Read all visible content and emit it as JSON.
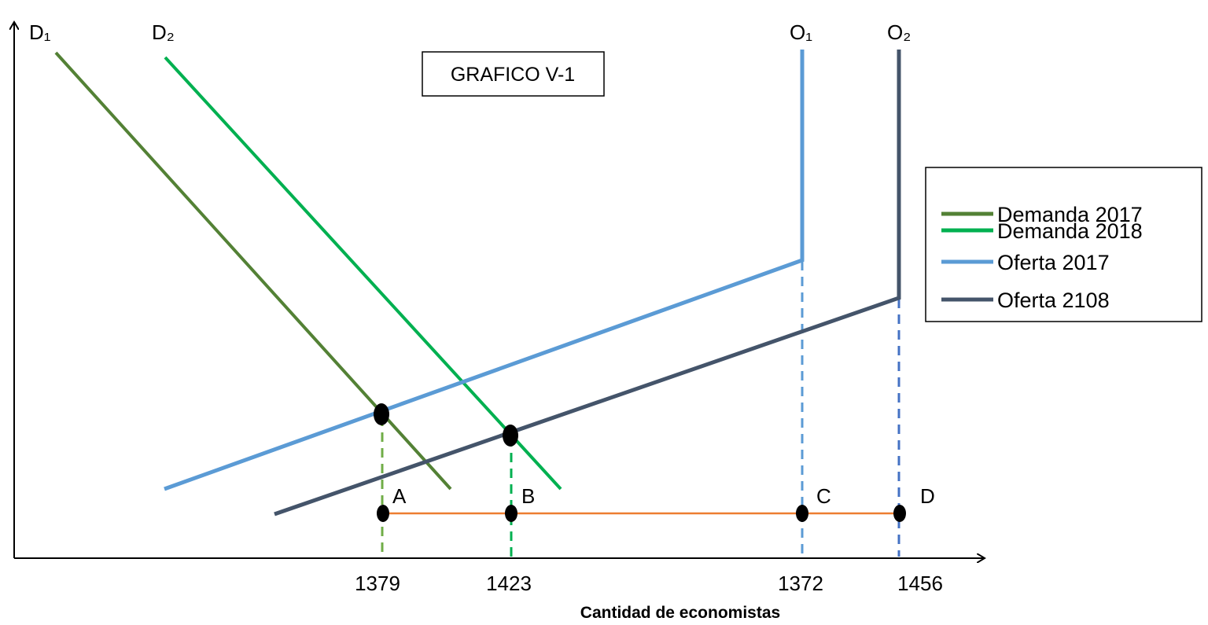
{
  "title_box": "GRAFICO V-1",
  "xlabel": "Cantidad de economistas",
  "curve_labels": {
    "d1": "D₁",
    "d2": "D₂",
    "o1": "O₁",
    "o2": "O₂"
  },
  "x_ticks": [
    "1379",
    "1423",
    "1372",
    "1456"
  ],
  "points": [
    "A",
    "B",
    "C",
    "D"
  ],
  "legend": [
    {
      "label": "Demanda 2017",
      "color": "#538135"
    },
    {
      "label": "Demanda 2018",
      "color": "#00b050"
    },
    {
      "label": "Oferta 2017",
      "color": "#5b9bd5"
    },
    {
      "label": "Oferta 2108",
      "color": "#44546a"
    }
  ],
  "colors": {
    "demanda_2017": "#538135",
    "demanda_2018": "#00b050",
    "oferta_2017": "#5b9bd5",
    "oferta_2018": "#44546a",
    "segment": "#ed7d31",
    "guide_a": "#70ad47",
    "guide_b": "#00b050",
    "guide_c": "#5b9bd5",
    "guide_d": "#4472c4"
  }
}
